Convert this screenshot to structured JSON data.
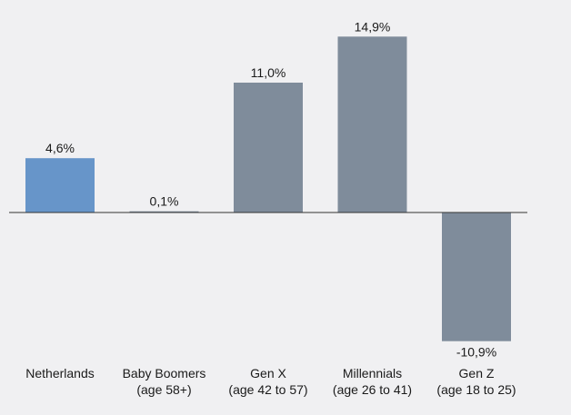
{
  "chart_data": {
    "type": "bar",
    "categories": [
      [
        "Netherlands"
      ],
      [
        "Baby Boomers",
        "(age 58+)"
      ],
      [
        "Gen X",
        "(age 42 to 57)"
      ],
      [
        "Millennials",
        "(age 26 to 41)"
      ],
      [
        "Gen Z",
        "(age 18 to 25)"
      ]
    ],
    "values": [
      4.6,
      0.1,
      11.0,
      14.9,
      -10.9
    ],
    "value_labels": [
      "4,6%",
      "0,1%",
      "11,0%",
      "14,9%",
      "-10,9%"
    ],
    "bar_colors": [
      "#6795c9",
      "#7f8c9b",
      "#7f8c9b",
      "#7f8c9b",
      "#7f8c9b"
    ],
    "axis_color": "#333333",
    "ylim": [
      -10.9,
      14.9
    ],
    "title": "",
    "xlabel": "",
    "ylabel": "",
    "grid": false,
    "legend": "none"
  }
}
